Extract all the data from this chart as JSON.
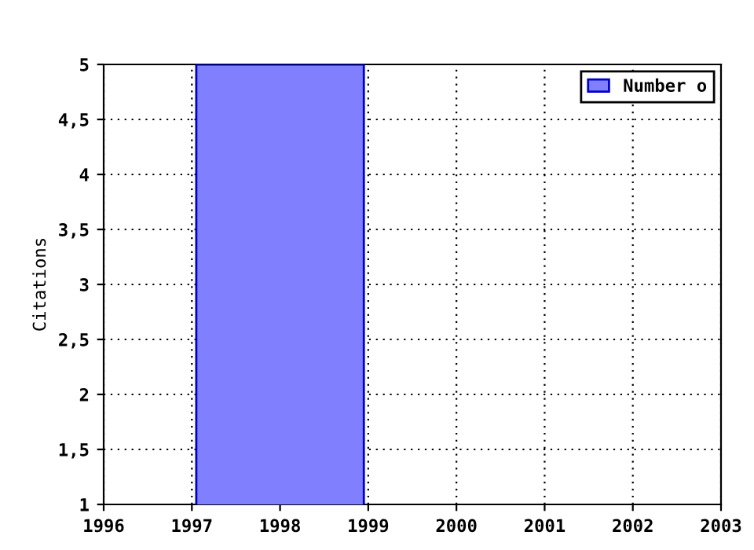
{
  "chart_data": {
    "type": "bar",
    "ylabel": "Citations",
    "x": [
      1998
    ],
    "series": [
      {
        "name": "Number o",
        "color": "#8080ff",
        "values": [
          5
        ]
      }
    ],
    "xlim": [
      1996,
      2003
    ],
    "xticks": [
      1996,
      1997,
      1998,
      1999,
      2000,
      2001,
      2002,
      2003
    ],
    "ylim": [
      1,
      5
    ],
    "yticks": [
      1,
      {
        "value": 1.5,
        "label": "1,5"
      },
      2,
      {
        "value": 2.5,
        "label": "2,5"
      },
      3,
      {
        "value": 3.5,
        "label": "3,5"
      },
      4,
      {
        "value": 4.5,
        "label": "4,5"
      },
      5
    ],
    "grid": true,
    "legend": "top right"
  }
}
